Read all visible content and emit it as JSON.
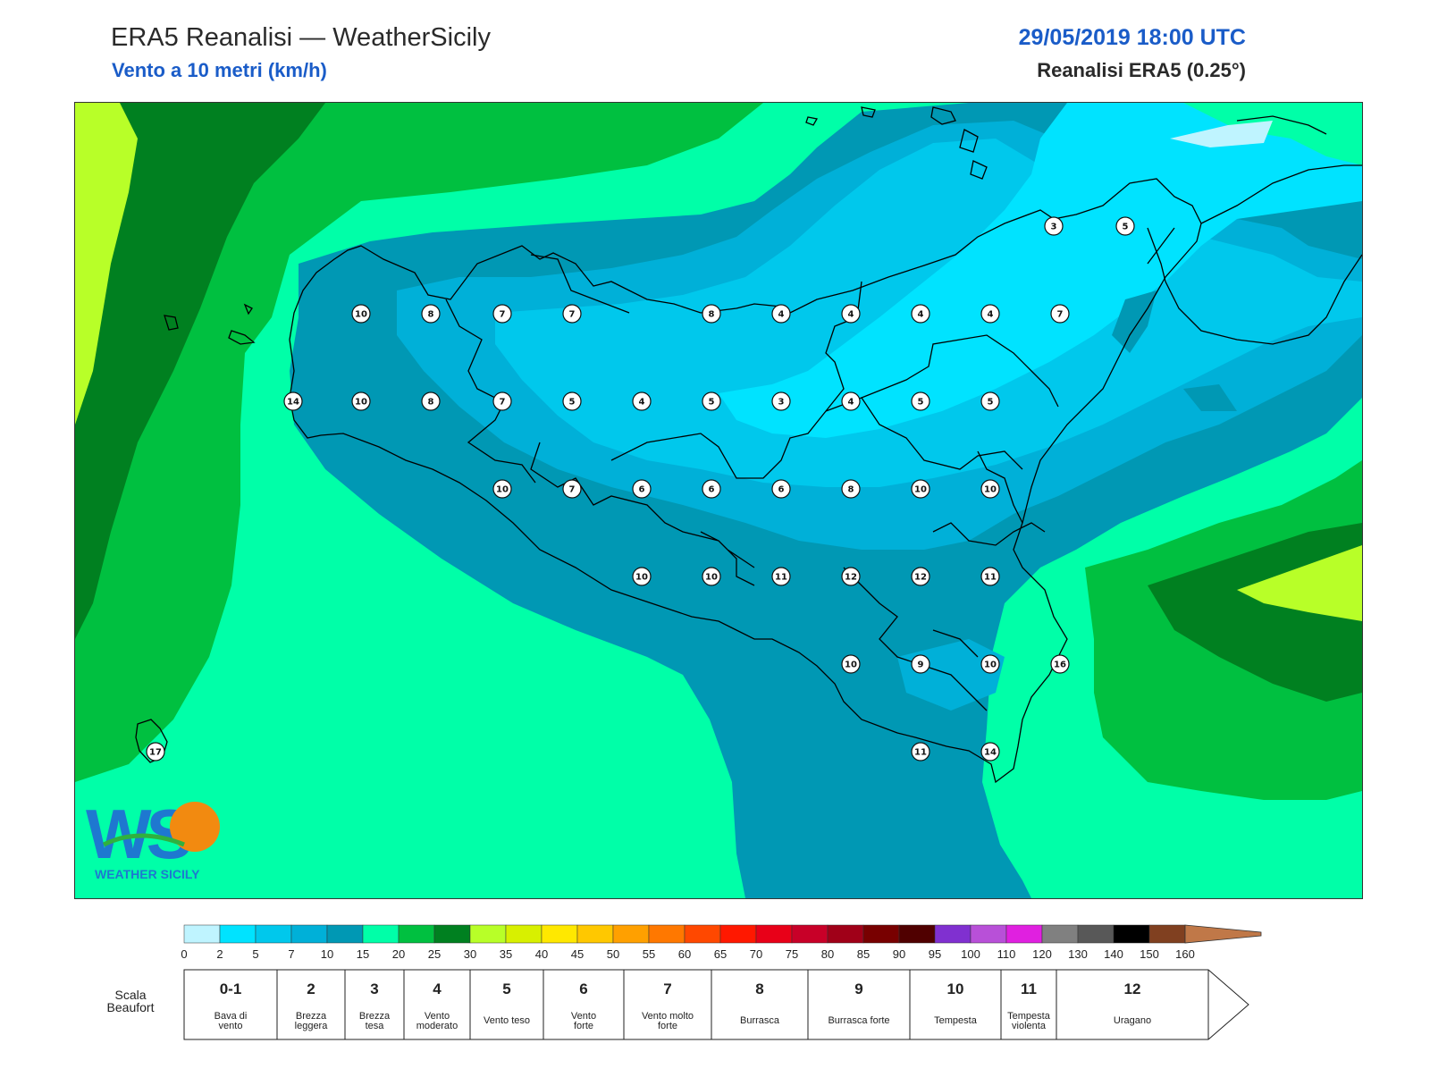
{
  "header": {
    "title": "ERA5 Reanalisi — WeatherSicily",
    "subtitle": "Vento a 10 metri (km/h)",
    "datetime": "29/05/2019 18:00 UTC",
    "model": "Reanalisi ERA5 (0.25°)"
  },
  "logo": {
    "text": "WEATHER SICILY"
  },
  "wind_values": [
    {
      "label": "3"
    },
    {
      "label": "5"
    },
    {
      "label": "10"
    },
    {
      "label": "8"
    },
    {
      "label": "7"
    },
    {
      "label": "7"
    },
    {
      "label": "8"
    },
    {
      "label": "4"
    },
    {
      "label": "4"
    },
    {
      "label": "4"
    },
    {
      "label": "4"
    },
    {
      "label": "7"
    },
    {
      "label": "14"
    },
    {
      "label": "10"
    },
    {
      "label": "8"
    },
    {
      "label": "7"
    },
    {
      "label": "5"
    },
    {
      "label": "4"
    },
    {
      "label": "5"
    },
    {
      "label": "3"
    },
    {
      "label": "4"
    },
    {
      "label": "5"
    },
    {
      "label": "5"
    },
    {
      "label": "10"
    },
    {
      "label": "7"
    },
    {
      "label": "6"
    },
    {
      "label": "6"
    },
    {
      "label": "6"
    },
    {
      "label": "8"
    },
    {
      "label": "10"
    },
    {
      "label": "10"
    },
    {
      "label": "10"
    },
    {
      "label": "10"
    },
    {
      "label": "11"
    },
    {
      "label": "12"
    },
    {
      "label": "12"
    },
    {
      "label": "11"
    },
    {
      "label": "10"
    },
    {
      "label": "9"
    },
    {
      "label": "10"
    },
    {
      "label": "16"
    },
    {
      "label": "17"
    },
    {
      "label": "11"
    },
    {
      "label": "14"
    }
  ],
  "colorbar": {
    "ticks": [
      "0",
      "2",
      "5",
      "7",
      "10",
      "15",
      "20",
      "25",
      "30",
      "35",
      "40",
      "45",
      "50",
      "55",
      "60",
      "65",
      "70",
      "75",
      "80",
      "85",
      "90",
      "95",
      "100",
      "110",
      "120",
      "130",
      "140",
      "150",
      "160"
    ],
    "colors": [
      "#bff4ff",
      "#00e3ff",
      "#00c8ec",
      "#00b0d8",
      "#0098b4",
      "#00ffa8",
      "#00c040",
      "#008020",
      "#b8ff28",
      "#d8f000",
      "#ffe800",
      "#ffc800",
      "#ffa000",
      "#ff7800",
      "#ff4800",
      "#ff1800",
      "#e80018",
      "#c80028",
      "#a00018",
      "#780000",
      "#500000",
      "#8030d0",
      "#b850d8",
      "#e020e0",
      "#808080",
      "#585858",
      "#000000",
      "#804020",
      "#c07848"
    ]
  },
  "beaufort": {
    "title": "Scala Beaufort",
    "classes": [
      {
        "num": "0-1",
        "desc": "Bava di vento"
      },
      {
        "num": "2",
        "desc": "Brezza leggera"
      },
      {
        "num": "3",
        "desc": "Brezza tesa"
      },
      {
        "num": "4",
        "desc": "Vento moderato"
      },
      {
        "num": "5",
        "desc": "Vento teso"
      },
      {
        "num": "6",
        "desc": "Vento forte"
      },
      {
        "num": "7",
        "desc": "Vento molto forte"
      },
      {
        "num": "8",
        "desc": "Burrasca"
      },
      {
        "num": "9",
        "desc": "Burrasca forte"
      },
      {
        "num": "10",
        "desc": "Tempesta"
      },
      {
        "num": "11",
        "desc": "Tempesta violenta"
      },
      {
        "num": "12",
        "desc": "Uragano"
      }
    ]
  }
}
